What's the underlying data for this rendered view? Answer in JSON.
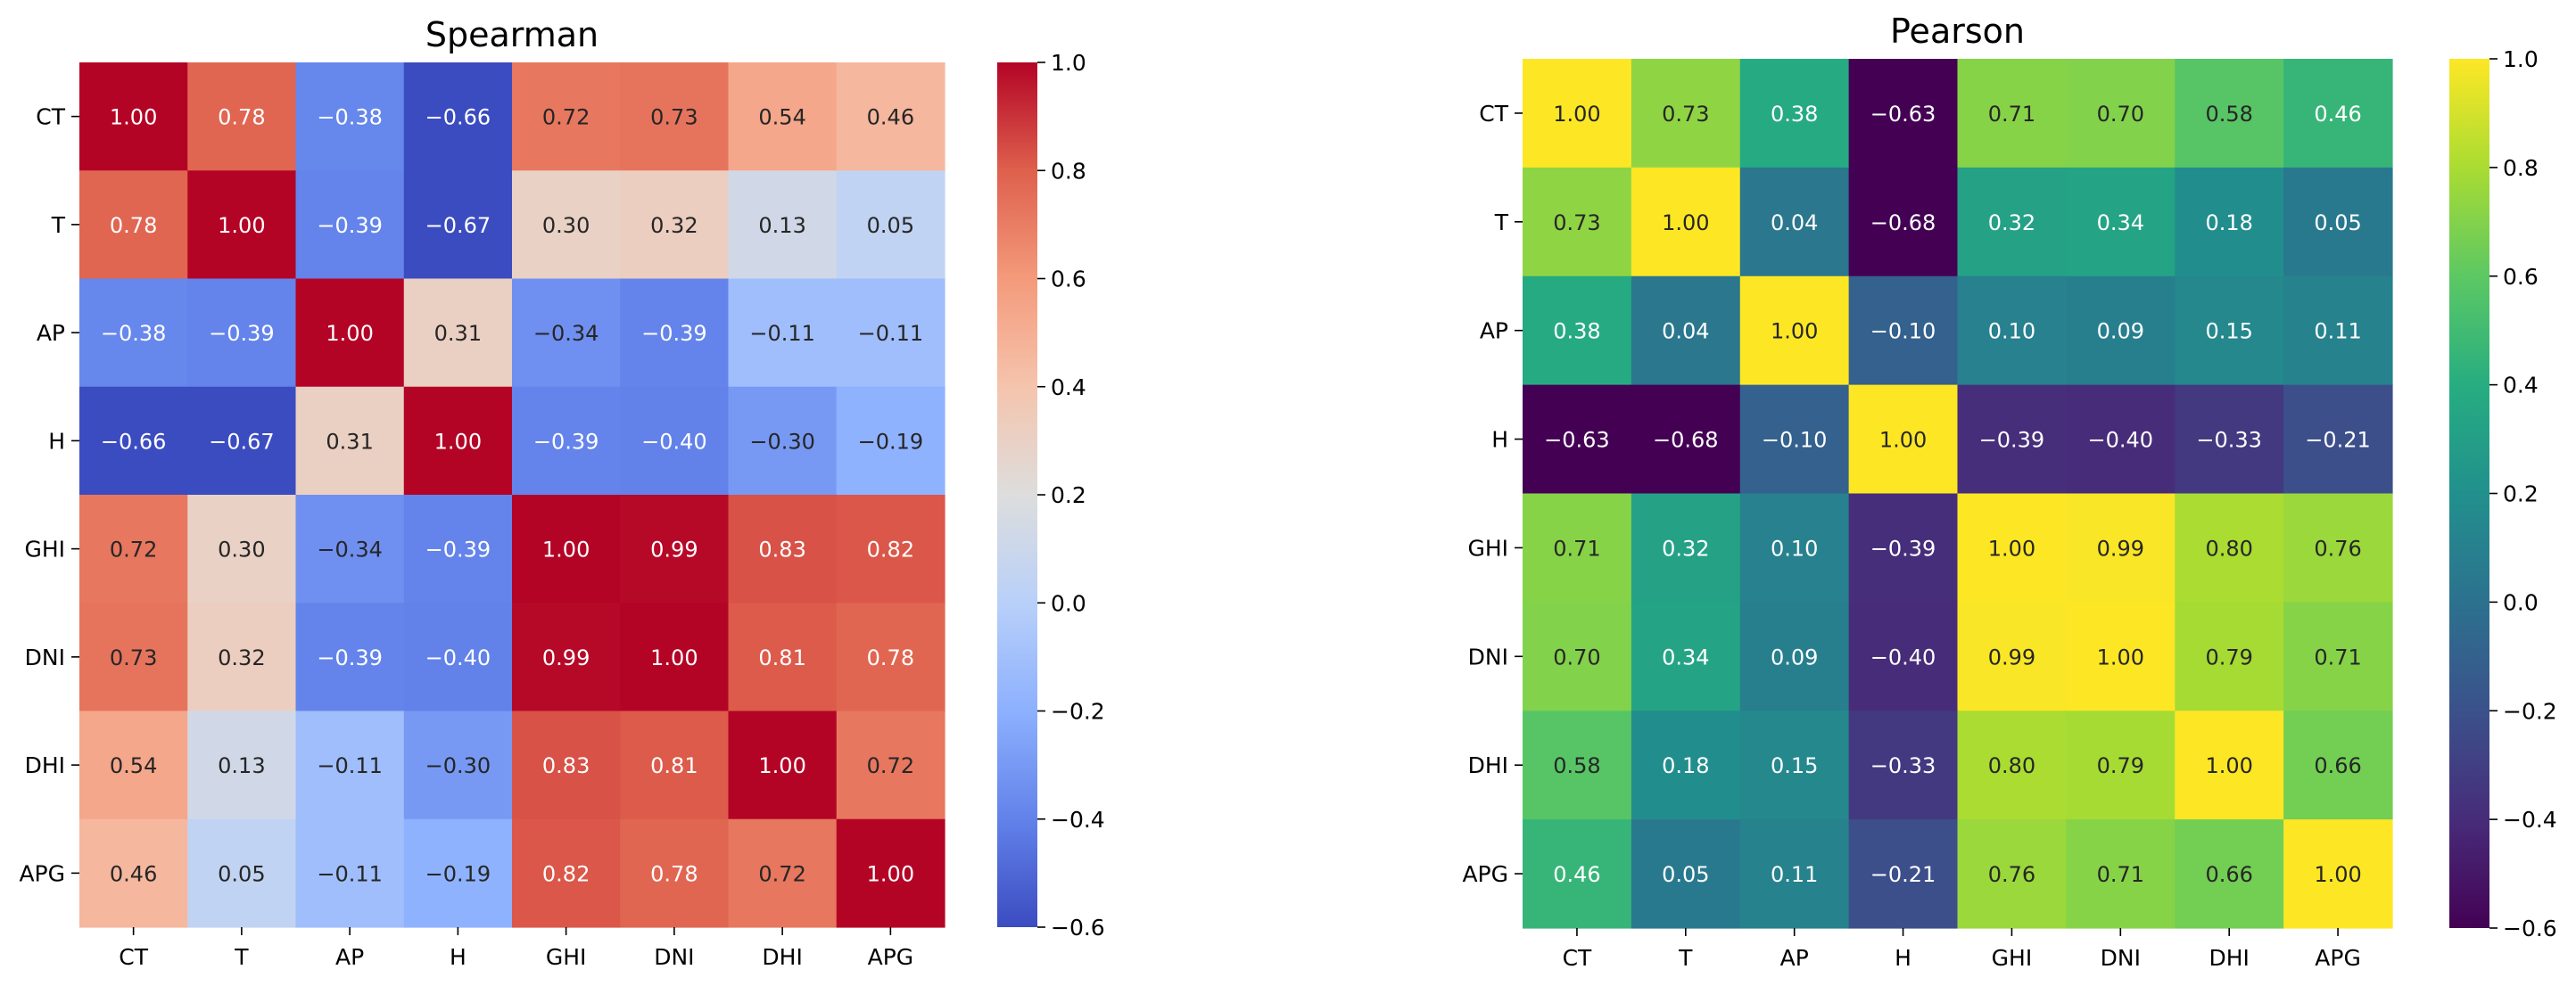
{
  "chart_data": [
    {
      "type": "heatmap",
      "title": "Spearman",
      "colormap": "coolwarm",
      "labels": [
        "CT",
        "T",
        "AP",
        "H",
        "GHI",
        "DNI",
        "DHI",
        "APG"
      ],
      "matrix": [
        [
          1.0,
          0.78,
          -0.38,
          -0.66,
          0.72,
          0.73,
          0.54,
          0.46
        ],
        [
          0.78,
          1.0,
          -0.39,
          -0.67,
          0.3,
          0.32,
          0.13,
          0.05
        ],
        [
          -0.38,
          -0.39,
          1.0,
          0.31,
          -0.34,
          -0.39,
          -0.11,
          -0.11
        ],
        [
          -0.66,
          -0.67,
          0.31,
          1.0,
          -0.39,
          -0.4,
          -0.3,
          -0.19
        ],
        [
          0.72,
          0.3,
          -0.34,
          -0.39,
          1.0,
          0.99,
          0.83,
          0.82
        ],
        [
          0.73,
          0.32,
          -0.39,
          -0.4,
          0.99,
          1.0,
          0.81,
          0.78
        ],
        [
          0.54,
          0.13,
          -0.11,
          -0.3,
          0.83,
          0.81,
          1.0,
          0.72
        ],
        [
          0.46,
          0.05,
          -0.11,
          -0.19,
          0.82,
          0.78,
          0.72,
          1.0
        ]
      ],
      "colorbar_range": [
        -0.6,
        1.0
      ],
      "colorbar_ticks": [
        1.0,
        0.8,
        0.6,
        0.4,
        0.2,
        0.0,
        -0.2,
        -0.4,
        -0.6
      ]
    },
    {
      "type": "heatmap",
      "title": "Pearson",
      "colormap": "viridis",
      "labels": [
        "CT",
        "T",
        "AP",
        "H",
        "GHI",
        "DNI",
        "DHI",
        "APG"
      ],
      "matrix": [
        [
          1.0,
          0.73,
          0.38,
          -0.63,
          0.71,
          0.7,
          0.58,
          0.46
        ],
        [
          0.73,
          1.0,
          0.04,
          -0.68,
          0.32,
          0.34,
          0.18,
          0.05
        ],
        [
          0.38,
          0.04,
          1.0,
          -0.1,
          0.1,
          0.09,
          0.15,
          0.11
        ],
        [
          -0.63,
          -0.68,
          -0.1,
          1.0,
          -0.39,
          -0.4,
          -0.33,
          -0.21
        ],
        [
          0.71,
          0.32,
          0.1,
          -0.39,
          1.0,
          0.99,
          0.8,
          0.76
        ],
        [
          0.7,
          0.34,
          0.09,
          -0.4,
          0.99,
          1.0,
          0.79,
          0.71
        ],
        [
          0.58,
          0.18,
          0.15,
          -0.33,
          0.8,
          0.79,
          1.0,
          0.66
        ],
        [
          0.46,
          0.05,
          0.11,
          -0.21,
          0.76,
          0.71,
          0.66,
          1.0
        ]
      ],
      "colorbar_range": [
        -0.6,
        1.0
      ],
      "colorbar_ticks": [
        1.0,
        0.8,
        0.6,
        0.4,
        0.2,
        0.0,
        -0.2,
        -0.4,
        -0.6
      ]
    }
  ]
}
